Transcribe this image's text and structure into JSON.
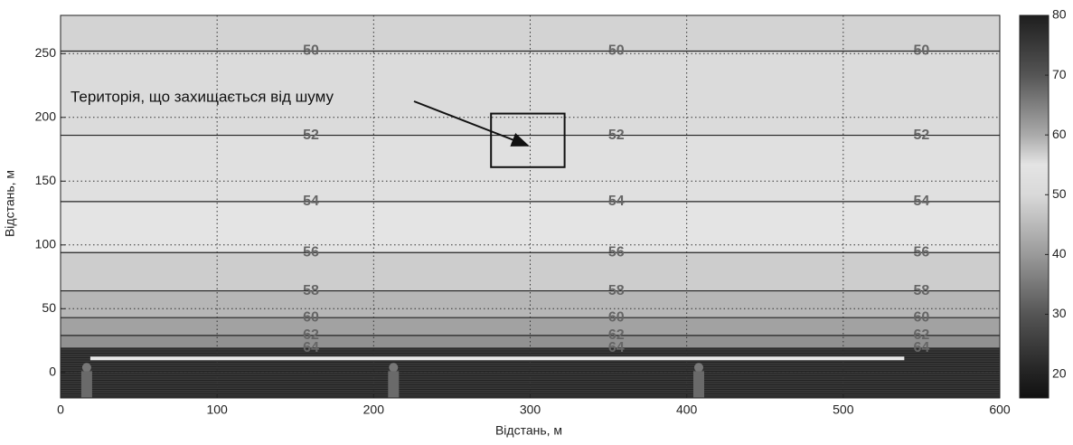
{
  "chart_data": {
    "type": "contour",
    "xlabel": "Відстань, м",
    "ylabel": "Відстань, м",
    "annotation": "Територія, що захищається від шуму",
    "xlim": [
      0,
      600
    ],
    "ylim": [
      -20,
      280
    ],
    "xticks": [
      0,
      100,
      200,
      300,
      400,
      500,
      600
    ],
    "yticks": [
      0,
      50,
      100,
      150,
      200,
      250
    ],
    "grid": true,
    "clim": [
      16,
      80
    ],
    "cticks": [
      20,
      30,
      40,
      50,
      60,
      70,
      80
    ],
    "colormap": [
      {
        "value": 16,
        "color": "#111111"
      },
      {
        "value": 20,
        "color": "#222222"
      },
      {
        "value": 30,
        "color": "#555555"
      },
      {
        "value": 40,
        "color": "#9a9a9a"
      },
      {
        "value": 50,
        "color": "#d9d9d9"
      },
      {
        "value": 55,
        "color": "#e4e4e4"
      },
      {
        "value": 60,
        "color": "#aaaaaa"
      },
      {
        "value": 70,
        "color": "#555555"
      },
      {
        "value": 80,
        "color": "#1e1e1e"
      }
    ],
    "contours": [
      {
        "level": 50,
        "y": 252
      },
      {
        "level": 52,
        "y": 186
      },
      {
        "level": 54,
        "y": 134
      },
      {
        "level": 56,
        "y": 94
      },
      {
        "level": 58,
        "y": 64
      },
      {
        "level": 60,
        "y": 43
      },
      {
        "level": 62,
        "y": 29
      },
      {
        "level": 64,
        "y": 19
      }
    ],
    "protected_area": {
      "x": [
        275,
        322
      ],
      "y": [
        161,
        203
      ]
    },
    "road": {
      "x": [
        19,
        539
      ],
      "y": 11
    }
  }
}
